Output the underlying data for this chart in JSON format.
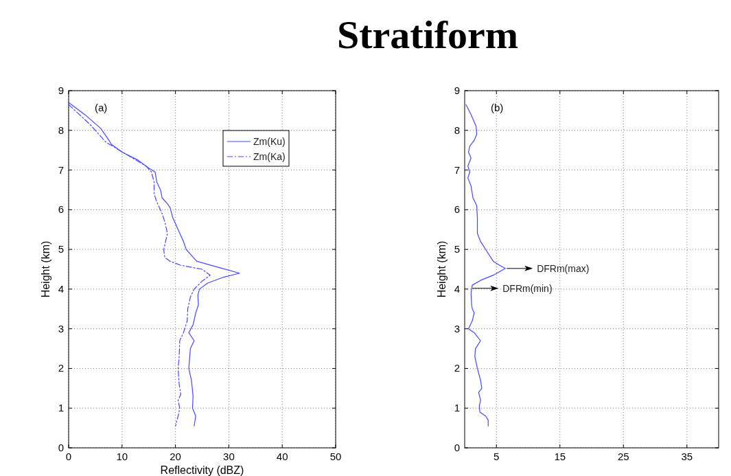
{
  "chart_data": [
    {
      "type": "line",
      "title": "Stratiform",
      "xlabel": "Reflectivity (dBZ)",
      "ylabel": "Height (km)",
      "xlim": [
        0,
        50
      ],
      "xticks": [
        0,
        10,
        20,
        30,
        40,
        50
      ],
      "ylim": [
        0,
        9
      ],
      "yticks": [
        0,
        1,
        2,
        3,
        4,
        5,
        6,
        7,
        8,
        9
      ],
      "grid": true,
      "legend": "top right",
      "annotations": [
        "(a)"
      ],
      "series": [
        {
          "name": "Zm(Ku)",
          "color": "#4646ff",
          "line_style": "solid",
          "x": [
            0,
            3,
            6,
            7.3,
            8,
            10,
            13,
            15,
            16.2,
            16.5,
            17.2,
            17.5,
            18.5,
            19,
            19.5,
            20.5,
            21.5,
            22,
            23,
            24,
            28,
            32,
            29,
            26,
            24.5,
            24.2,
            24.3,
            23.8,
            23.3,
            22.5,
            23.5,
            22.8,
            22.5,
            23,
            23.3,
            23.2,
            23.8,
            23.5
          ],
          "values": [
            8.7,
            8.4,
            8.05,
            7.8,
            7.65,
            7.45,
            7.25,
            7.05,
            6.95,
            6.7,
            6.5,
            6.3,
            6.15,
            6.05,
            5.8,
            5.5,
            5.2,
            5.0,
            4.85,
            4.7,
            4.55,
            4.4,
            4.3,
            4.15,
            4.0,
            3.85,
            3.6,
            3.4,
            3.1,
            2.9,
            2.7,
            2.5,
            2.0,
            1.7,
            1.3,
            1.0,
            0.8,
            0.55
          ]
        },
        {
          "name": "Zm(Ka)",
          "color": "#4646ff",
          "line_style": "dashed",
          "x": [
            0,
            2,
            4,
            5,
            7,
            9.5,
            12,
            14.5,
            15.5,
            16,
            16,
            16.5,
            17.5,
            18,
            18.5,
            17.8,
            18,
            19,
            21,
            25,
            26.5,
            25,
            23.5,
            22.8,
            22.3,
            22.2,
            21.5,
            20.8,
            20.7,
            20.5,
            20.7,
            21,
            20.5,
            20.8,
            20.5,
            20
          ],
          "values": [
            8.65,
            8.4,
            8.15,
            8.0,
            7.7,
            7.5,
            7.3,
            7.1,
            6.95,
            6.7,
            6.4,
            6.2,
            5.9,
            5.7,
            5.4,
            5.0,
            4.8,
            4.7,
            4.6,
            4.5,
            4.35,
            4.2,
            4.0,
            3.8,
            3.5,
            3.2,
            2.9,
            2.7,
            2.3,
            2.0,
            1.6,
            1.35,
            1.2,
            1.0,
            0.8,
            0.55
          ]
        }
      ]
    },
    {
      "type": "line",
      "ylabel": "Height (km)",
      "xlim": [
        0,
        40
      ],
      "xticks": [
        5,
        15,
        25,
        35
      ],
      "ylim": [
        0,
        9
      ],
      "yticks": [
        0,
        1,
        2,
        3,
        4,
        5,
        6,
        7,
        8,
        9
      ],
      "grid": true,
      "annotations": [
        "(b)",
        {
          "text": "DFRm(max)",
          "x": 6.4,
          "y": 4.52
        },
        {
          "text": "DFRm(min)",
          "x": 1.0,
          "y": 4.02
        }
      ],
      "series": [
        {
          "color": "#4646ff",
          "line_style": "solid",
          "x": [
            0.2,
            1,
            1.8,
            1.9,
            1.5,
            0.8,
            0.6,
            1,
            0.5,
            0.8,
            0.5,
            1,
            1.3,
            1.9,
            2,
            2,
            2.5,
            3.5,
            4.5,
            5.5,
            6.4,
            4.5,
            2.5,
            1.2,
            1,
            1.1,
            1.2,
            1.5,
            1.2,
            0.6,
            1.5,
            2.5,
            1.7,
            1.6,
            2,
            2.5,
            2.7,
            2.2,
            2.5,
            2.3,
            2.4,
            3.3,
            3.7,
            3.7
          ],
          "values": [
            8.65,
            8.4,
            8.1,
            7.9,
            7.75,
            7.6,
            7.45,
            7.3,
            7.1,
            6.95,
            6.8,
            6.6,
            6.3,
            6.1,
            5.8,
            5.4,
            5.2,
            4.95,
            4.7,
            4.6,
            4.52,
            4.35,
            4.22,
            4.1,
            3.9,
            3.6,
            3.5,
            3.4,
            3.2,
            3.0,
            2.9,
            2.7,
            2.5,
            2.3,
            2.0,
            1.7,
            1.5,
            1.4,
            1.2,
            1.05,
            0.9,
            0.8,
            0.7,
            0.55
          ]
        }
      ]
    }
  ]
}
